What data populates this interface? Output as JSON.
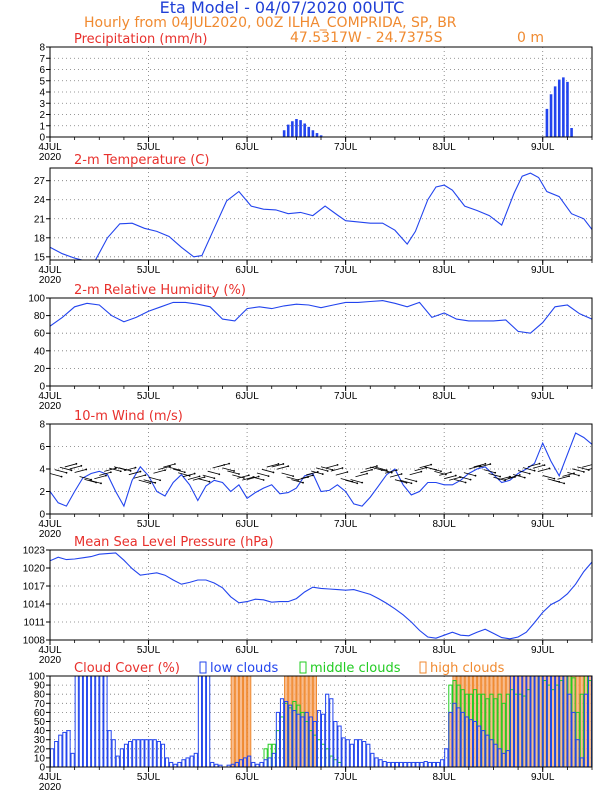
{
  "header": {
    "title": "Eta Model - 04/07/2020 00UTC",
    "subtitle": "Hourly from 04JUL2020, 00Z  ILHA_COMPRIDA, SP, BR",
    "coords": "47.5317W - 24.7375S",
    "elevation": "0  m"
  },
  "colors": {
    "title": "#1f3fd6",
    "orange": "#f08a30",
    "red": "#e8302c",
    "blue": "#2244ee",
    "green": "#22cc22",
    "orange_fill": "#f7b07a",
    "grid": "#777777"
  },
  "x_axis": {
    "range_hours": [
      0,
      132
    ],
    "ticks": [
      {
        "hour": 0,
        "label": "4JUL",
        "year": "2020"
      },
      {
        "hour": 24,
        "label": "5JUL"
      },
      {
        "hour": 48,
        "label": "6JUL"
      },
      {
        "hour": 72,
        "label": "7JUL"
      },
      {
        "hour": 96,
        "label": "8JUL"
      },
      {
        "hour": 120,
        "label": "9JUL"
      }
    ]
  },
  "chart_data": [
    {
      "id": "precip",
      "type": "bar",
      "title": "Precipitation (mm/h)",
      "ylim": [
        0,
        8
      ],
      "yticks": [
        0,
        1,
        2,
        3,
        4,
        5,
        6,
        7,
        8
      ],
      "series": [
        {
          "name": "precipitation",
          "color": "#2244ee",
          "x": [
            57,
            58,
            59,
            60,
            61,
            62,
            63,
            64,
            65,
            66,
            121,
            122,
            123,
            124,
            125,
            126,
            127
          ],
          "values": [
            0.6,
            1.1,
            1.4,
            1.6,
            1.5,
            1.2,
            0.9,
            0.6,
            0.35,
            0.15,
            2.5,
            3.8,
            4.5,
            5.1,
            5.3,
            4.9,
            0.8
          ]
        }
      ]
    },
    {
      "id": "temp",
      "type": "line",
      "title": "2-m Temperature (C)",
      "ylim": [
        14.5,
        29
      ],
      "yticks": [
        15,
        18,
        21,
        24,
        27
      ],
      "series": [
        {
          "name": "temperature",
          "color": "#2244ee",
          "x": [
            0,
            3,
            6,
            9,
            11,
            14,
            17,
            20,
            23,
            26,
            29,
            32,
            35,
            37,
            40,
            43,
            46,
            49,
            52,
            55,
            58,
            61,
            64,
            67,
            70,
            72,
            75,
            78,
            81,
            84,
            87,
            89,
            92,
            94,
            96,
            98,
            101,
            104,
            107,
            110,
            113,
            115,
            117,
            119,
            121,
            124,
            127,
            130,
            132
          ],
          "values": [
            16.5,
            15.5,
            14.8,
            14.3,
            14.4,
            18.0,
            20.2,
            20.3,
            19.5,
            19.0,
            18.2,
            16.5,
            15.0,
            15.2,
            19.5,
            23.8,
            25.3,
            23.0,
            22.5,
            22.4,
            21.8,
            22.0,
            21.5,
            23.0,
            21.6,
            20.7,
            20.5,
            20.3,
            20.3,
            19.2,
            17.0,
            19.0,
            24.0,
            26.0,
            26.3,
            25.5,
            23.0,
            22.3,
            21.5,
            20.0,
            25.0,
            27.7,
            28.2,
            27.5,
            25.3,
            24.5,
            21.8,
            21.0,
            19.3
          ]
        }
      ]
    },
    {
      "id": "rh",
      "type": "line",
      "title": "2-m Relative Humidity (%)",
      "ylim": [
        0,
        100
      ],
      "yticks": [
        0,
        20,
        40,
        60,
        80,
        100
      ],
      "series": [
        {
          "name": "relative_humidity",
          "color": "#2244ee",
          "x": [
            0,
            3,
            6,
            9,
            12,
            15,
            18,
            21,
            24,
            27,
            30,
            33,
            36,
            39,
            42,
            45,
            48,
            51,
            54,
            57,
            60,
            63,
            66,
            69,
            72,
            75,
            78,
            81,
            84,
            87,
            90,
            93,
            96,
            99,
            102,
            105,
            108,
            111,
            114,
            117,
            120,
            123,
            126,
            129,
            132
          ],
          "values": [
            68,
            78,
            90,
            94,
            92,
            80,
            73,
            78,
            85,
            90,
            95,
            95,
            93,
            90,
            76,
            74,
            88,
            90,
            88,
            91,
            93,
            92,
            89,
            92,
            95,
            95,
            96,
            97,
            94,
            90,
            95,
            78,
            83,
            76,
            74,
            74,
            74,
            75,
            62,
            60,
            72,
            90,
            92,
            82,
            76
          ]
        }
      ]
    },
    {
      "id": "wind",
      "type": "line",
      "title": "10-m Wind (m/s)",
      "ylim": [
        0,
        8
      ],
      "yticks": [
        0,
        2,
        4,
        6,
        8
      ],
      "series": [
        {
          "name": "wind_speed",
          "color": "#2244ee",
          "x": [
            0,
            2,
            4,
            6,
            8,
            10,
            12,
            14,
            16,
            18,
            20,
            22,
            24,
            26,
            28,
            30,
            32,
            34,
            36,
            38,
            40,
            42,
            44,
            46,
            48,
            50,
            52,
            54,
            56,
            58,
            60,
            62,
            64,
            66,
            68,
            70,
            72,
            74,
            76,
            78,
            80,
            82,
            84,
            86,
            88,
            90,
            92,
            94,
            96,
            98,
            100,
            102,
            104,
            106,
            108,
            110,
            112,
            114,
            116,
            118,
            120,
            122,
            124,
            126,
            128,
            130,
            132
          ],
          "values": [
            2.0,
            1.0,
            0.7,
            2.0,
            3.2,
            3.6,
            3.8,
            3.5,
            2.0,
            0.7,
            3.0,
            4.2,
            3.4,
            2.0,
            1.6,
            2.8,
            3.5,
            2.6,
            1.2,
            2.5,
            3.0,
            2.8,
            2.0,
            2.6,
            1.4,
            1.9,
            2.3,
            2.6,
            1.8,
            1.9,
            2.3,
            3.4,
            3.6,
            2.0,
            2.1,
            2.6,
            2.0,
            0.9,
            0.7,
            1.5,
            2.5,
            3.5,
            4.0,
            2.6,
            1.7,
            2.0,
            2.8,
            2.8,
            2.6,
            2.6,
            3.0,
            3.6,
            4.0,
            4.2,
            3.5,
            2.8,
            3.0,
            3.6,
            4.0,
            4.5,
            6.3,
            4.7,
            3.4,
            5.3,
            7.2,
            6.8,
            6.2
          ]
        }
      ]
    },
    {
      "id": "pressure",
      "type": "line",
      "title": "Mean Sea Level Pressure (hPa)",
      "ylim": [
        1008,
        1023
      ],
      "yticks": [
        1008,
        1011,
        1014,
        1017,
        1020,
        1023
      ],
      "series": [
        {
          "name": "mslp",
          "color": "#2244ee",
          "x": [
            0,
            2,
            4,
            6,
            8,
            10,
            12,
            14,
            16,
            18,
            20,
            22,
            24,
            26,
            28,
            30,
            32,
            34,
            36,
            38,
            40,
            42,
            44,
            46,
            48,
            50,
            52,
            54,
            56,
            58,
            60,
            62,
            64,
            66,
            68,
            70,
            72,
            74,
            76,
            78,
            80,
            82,
            84,
            86,
            88,
            90,
            92,
            94,
            96,
            98,
            100,
            102,
            104,
            106,
            108,
            110,
            112,
            114,
            116,
            118,
            120,
            122,
            124,
            126,
            128,
            130,
            132
          ],
          "values": [
            1021.2,
            1021.8,
            1021.4,
            1021.5,
            1021.7,
            1021.9,
            1022.3,
            1022.4,
            1022.5,
            1021.3,
            1019.9,
            1018.8,
            1019.0,
            1019.2,
            1018.8,
            1018.0,
            1017.3,
            1017.6,
            1018.0,
            1018.0,
            1017.5,
            1016.7,
            1015.2,
            1014.2,
            1014.4,
            1014.8,
            1014.7,
            1014.3,
            1014.4,
            1014.4,
            1014.9,
            1016.0,
            1016.8,
            1016.6,
            1016.5,
            1016.4,
            1016.3,
            1016.4,
            1016.0,
            1015.6,
            1014.9,
            1014.1,
            1013.2,
            1012.2,
            1011.0,
            1009.6,
            1008.5,
            1008.3,
            1008.8,
            1009.3,
            1008.8,
            1008.7,
            1009.3,
            1009.8,
            1009.1,
            1008.4,
            1008.2,
            1008.5,
            1009.3,
            1010.9,
            1012.6,
            1013.9,
            1014.6,
            1015.7,
            1017.3,
            1019.4,
            1021.0
          ]
        }
      ]
    },
    {
      "id": "cloud",
      "type": "bar",
      "title": "Cloud Cover (%)",
      "legend": [
        "low clouds",
        "middle clouds",
        "high clouds"
      ],
      "ylim": [
        0,
        100
      ],
      "yticks": [
        0,
        10,
        20,
        30,
        40,
        50,
        60,
        70,
        80,
        90,
        100
      ],
      "series": [
        {
          "name": "low clouds",
          "color": "#2244ee",
          "x": [
            0,
            1,
            2,
            3,
            4,
            5,
            6,
            7,
            8,
            9,
            10,
            11,
            12,
            13,
            14,
            15,
            16,
            17,
            18,
            19,
            20,
            21,
            22,
            23,
            24,
            25,
            26,
            27,
            28,
            29,
            30,
            31,
            32,
            33,
            34,
            35,
            36,
            37,
            38,
            39,
            40,
            41,
            42,
            43,
            44,
            45,
            46,
            47,
            48,
            49,
            50,
            51,
            52,
            53,
            54,
            55,
            56,
            57,
            58,
            59,
            60,
            61,
            62,
            63,
            64,
            65,
            66,
            67,
            68,
            69,
            70,
            71,
            72,
            73,
            74,
            75,
            76,
            77,
            78,
            79,
            80,
            81,
            82,
            83,
            84,
            85,
            86,
            87,
            88,
            89,
            90,
            91,
            92,
            93,
            94,
            95,
            96,
            97,
            98,
            99,
            100,
            101,
            102,
            103,
            104,
            105,
            106,
            107,
            108,
            109,
            110,
            111,
            112,
            113,
            114,
            115,
            116,
            117,
            118,
            119,
            120,
            121,
            122,
            123,
            124,
            125,
            126,
            127,
            128,
            129,
            130,
            131
          ],
          "values": [
            20,
            28,
            35,
            38,
            40,
            15,
            100,
            100,
            100,
            100,
            100,
            100,
            100,
            100,
            40,
            30,
            12,
            20,
            25,
            28,
            30,
            30,
            30,
            30,
            30,
            30,
            28,
            25,
            10,
            5,
            3,
            5,
            8,
            10,
            12,
            15,
            100,
            100,
            100,
            5,
            3,
            2,
            0,
            2,
            3,
            5,
            8,
            10,
            12,
            5,
            3,
            5,
            8,
            10,
            15,
            60,
            75,
            72,
            68,
            62,
            58,
            55,
            60,
            55,
            50,
            62,
            58,
            80,
            75,
            50,
            45,
            32,
            30,
            25,
            30,
            30,
            28,
            25,
            15,
            10,
            8,
            6,
            5,
            5,
            5,
            5,
            5,
            5,
            5,
            5,
            5,
            6,
            5,
            5,
            5,
            8,
            20,
            60,
            70,
            65,
            60,
            55,
            52,
            50,
            45,
            40,
            35,
            30,
            25,
            20,
            15,
            18,
            100,
            100,
            100,
            100,
            100,
            100,
            100,
            100,
            100,
            100,
            100,
            100,
            100,
            100,
            80,
            60,
            30,
            10,
            80,
            100
          ]
        },
        {
          "name": "middle clouds",
          "color": "#22cc22",
          "x": [
            52,
            53,
            54,
            55,
            56,
            57,
            58,
            59,
            60,
            61,
            62,
            63,
            64,
            65,
            66,
            67,
            68,
            69,
            70,
            97,
            98,
            99,
            100,
            101,
            102,
            103,
            104,
            105,
            106,
            107,
            108,
            109,
            110,
            111,
            112,
            113,
            114,
            115,
            116,
            117,
            118,
            119,
            120,
            121,
            122,
            123,
            124,
            125,
            126,
            127,
            128,
            129,
            130,
            131
          ],
          "values": [
            20,
            25,
            25,
            40,
            55,
            70,
            65,
            72,
            68,
            60,
            50,
            40,
            35,
            30,
            25,
            20,
            12,
            8,
            5,
            90,
            95,
            90,
            85,
            80,
            80,
            85,
            80,
            80,
            75,
            80,
            75,
            80,
            70,
            80,
            85,
            80,
            80,
            78,
            85,
            100,
            100,
            100,
            95,
            90,
            85,
            90,
            95,
            100,
            100,
            98,
            60,
            80,
            100,
            95
          ]
        },
        {
          "name": "high clouds",
          "color": "#f7b07a",
          "x": [
            44,
            45,
            46,
            47,
            48,
            57,
            58,
            59,
            60,
            61,
            62,
            63,
            64,
            97,
            98,
            99,
            100,
            101,
            102,
            103,
            104,
            105,
            106,
            107,
            108,
            109,
            110,
            111,
            112,
            113,
            114,
            115,
            116,
            117,
            118,
            119,
            120,
            121,
            122,
            123,
            124,
            125,
            126,
            127,
            128,
            129,
            130,
            131
          ],
          "values": [
            100,
            100,
            100,
            100,
            100,
            100,
            100,
            100,
            100,
            100,
            100,
            100,
            100,
            60,
            100,
            100,
            100,
            100,
            100,
            100,
            100,
            100,
            100,
            100,
            100,
            100,
            100,
            100,
            100,
            100,
            100,
            100,
            100,
            100,
            100,
            100,
            100,
            100,
            100,
            100,
            100,
            100,
            100,
            100,
            100,
            100,
            100,
            100
          ]
        }
      ]
    }
  ]
}
